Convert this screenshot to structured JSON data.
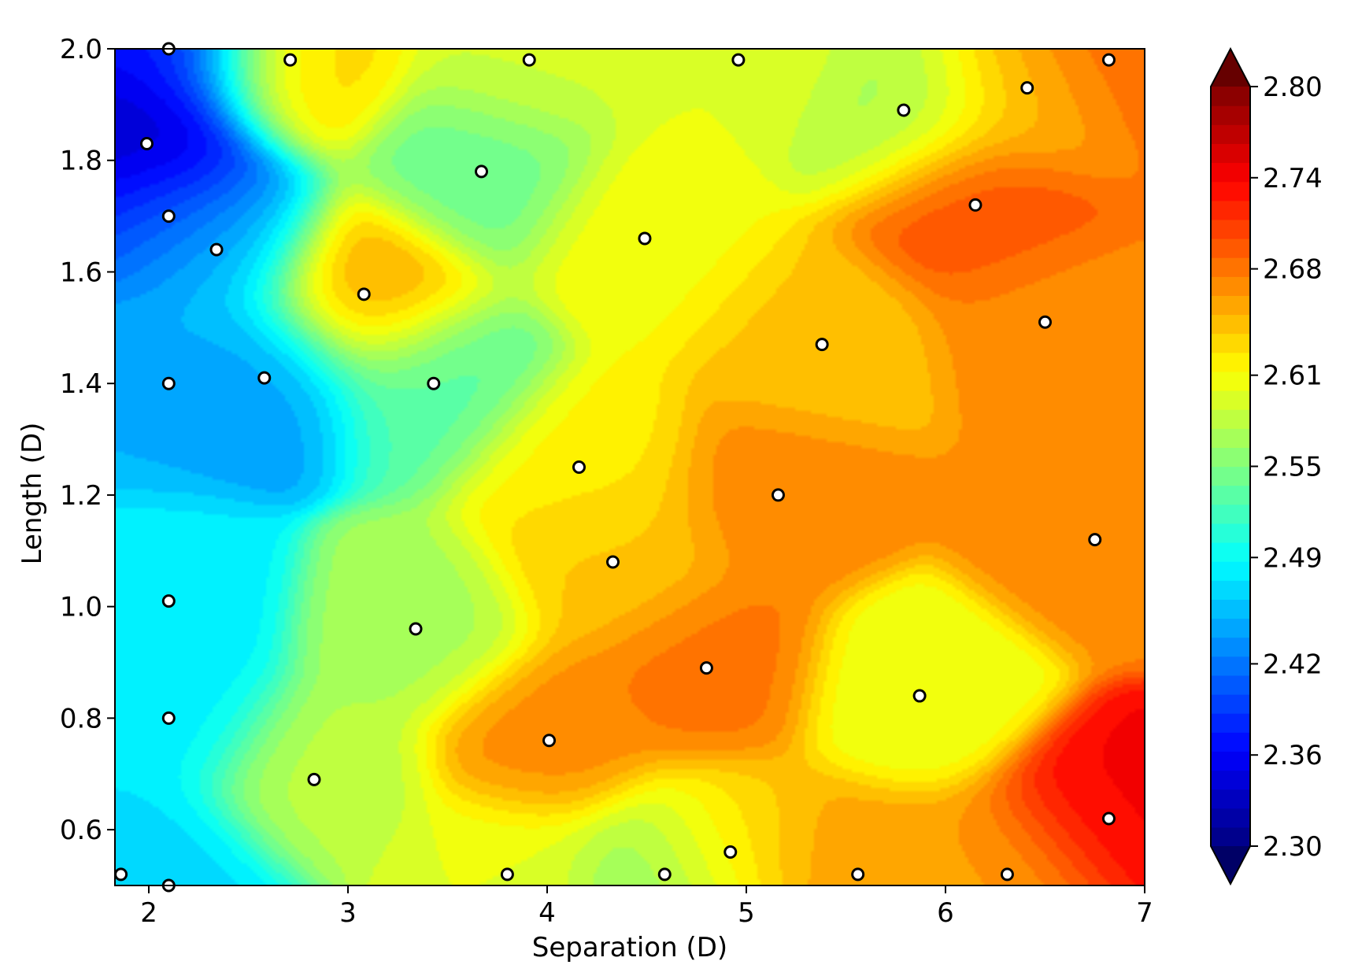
{
  "chart_data": {
    "type": "contour",
    "title": "",
    "xlabel": "Separation (D)",
    "ylabel": "Length (D)",
    "xlim": [
      1.83,
      7.0
    ],
    "ylim": [
      0.5,
      2.0
    ],
    "x_ticks": [
      2,
      3,
      4,
      5,
      6,
      7
    ],
    "y_ticks": [
      0.6,
      0.8,
      1.0,
      1.2,
      1.4,
      1.6,
      1.8,
      2.0
    ],
    "x_tick_labels": [
      "2",
      "3",
      "4",
      "5",
      "6",
      "7"
    ],
    "y_tick_labels": [
      "0.6",
      "0.8",
      "1.0",
      "1.2",
      "1.4",
      "1.6",
      "1.8",
      "2.0"
    ],
    "colormap": "jet",
    "colorbar": {
      "min": 2.3,
      "max": 2.8,
      "extend": "both",
      "ticks": [
        2.3,
        2.36,
        2.42,
        2.49,
        2.55,
        2.61,
        2.68,
        2.74,
        2.8
      ],
      "tick_labels": [
        "2.30",
        "2.36",
        "2.42",
        "2.49",
        "2.55",
        "2.61",
        "2.68",
        "2.74",
        "2.80"
      ]
    },
    "sample_points": [
      {
        "x": 1.86,
        "y": 0.52,
        "value": 2.47
      },
      {
        "x": 2.1,
        "y": 0.5,
        "value": 2.47
      },
      {
        "x": 2.1,
        "y": 0.8,
        "value": 2.48
      },
      {
        "x": 2.1,
        "y": 1.01,
        "value": 2.48
      },
      {
        "x": 2.1,
        "y": 1.4,
        "value": 2.45
      },
      {
        "x": 2.1,
        "y": 1.7,
        "value": 2.39
      },
      {
        "x": 1.99,
        "y": 1.83,
        "value": 2.33
      },
      {
        "x": 2.1,
        "y": 2.0,
        "value": 2.37
      },
      {
        "x": 2.34,
        "y": 1.64,
        "value": 2.47
      },
      {
        "x": 2.58,
        "y": 1.41,
        "value": 2.44
      },
      {
        "x": 2.83,
        "y": 0.69,
        "value": 2.58
      },
      {
        "x": 2.71,
        "y": 1.98,
        "value": 2.63
      },
      {
        "x": 3.08,
        "y": 1.56,
        "value": 2.66
      },
      {
        "x": 3.34,
        "y": 0.96,
        "value": 2.57
      },
      {
        "x": 3.43,
        "y": 1.4,
        "value": 2.53
      },
      {
        "x": 3.67,
        "y": 1.78,
        "value": 2.54
      },
      {
        "x": 3.8,
        "y": 0.52,
        "value": 2.6
      },
      {
        "x": 3.91,
        "y": 1.98,
        "value": 2.59
      },
      {
        "x": 4.01,
        "y": 0.76,
        "value": 2.67
      },
      {
        "x": 4.16,
        "y": 1.25,
        "value": 2.62
      },
      {
        "x": 4.33,
        "y": 1.08,
        "value": 2.64
      },
      {
        "x": 4.49,
        "y": 1.66,
        "value": 2.61
      },
      {
        "x": 4.59,
        "y": 0.52,
        "value": 2.55
      },
      {
        "x": 4.8,
        "y": 0.89,
        "value": 2.68
      },
      {
        "x": 4.92,
        "y": 0.56,
        "value": 2.64
      },
      {
        "x": 4.96,
        "y": 1.98,
        "value": 2.6
      },
      {
        "x": 5.16,
        "y": 1.2,
        "value": 2.67
      },
      {
        "x": 5.38,
        "y": 1.47,
        "value": 2.64
      },
      {
        "x": 5.56,
        "y": 0.52,
        "value": 2.66
      },
      {
        "x": 5.79,
        "y": 1.89,
        "value": 2.57
      },
      {
        "x": 5.87,
        "y": 0.84,
        "value": 2.6
      },
      {
        "x": 6.15,
        "y": 1.72,
        "value": 2.7
      },
      {
        "x": 6.31,
        "y": 0.52,
        "value": 2.66
      },
      {
        "x": 6.41,
        "y": 1.93,
        "value": 2.64
      },
      {
        "x": 6.5,
        "y": 1.51,
        "value": 2.67
      },
      {
        "x": 6.75,
        "y": 1.12,
        "value": 2.67
      },
      {
        "x": 6.82,
        "y": 0.62,
        "value": 2.74
      },
      {
        "x": 6.82,
        "y": 1.98,
        "value": 2.69
      }
    ]
  }
}
